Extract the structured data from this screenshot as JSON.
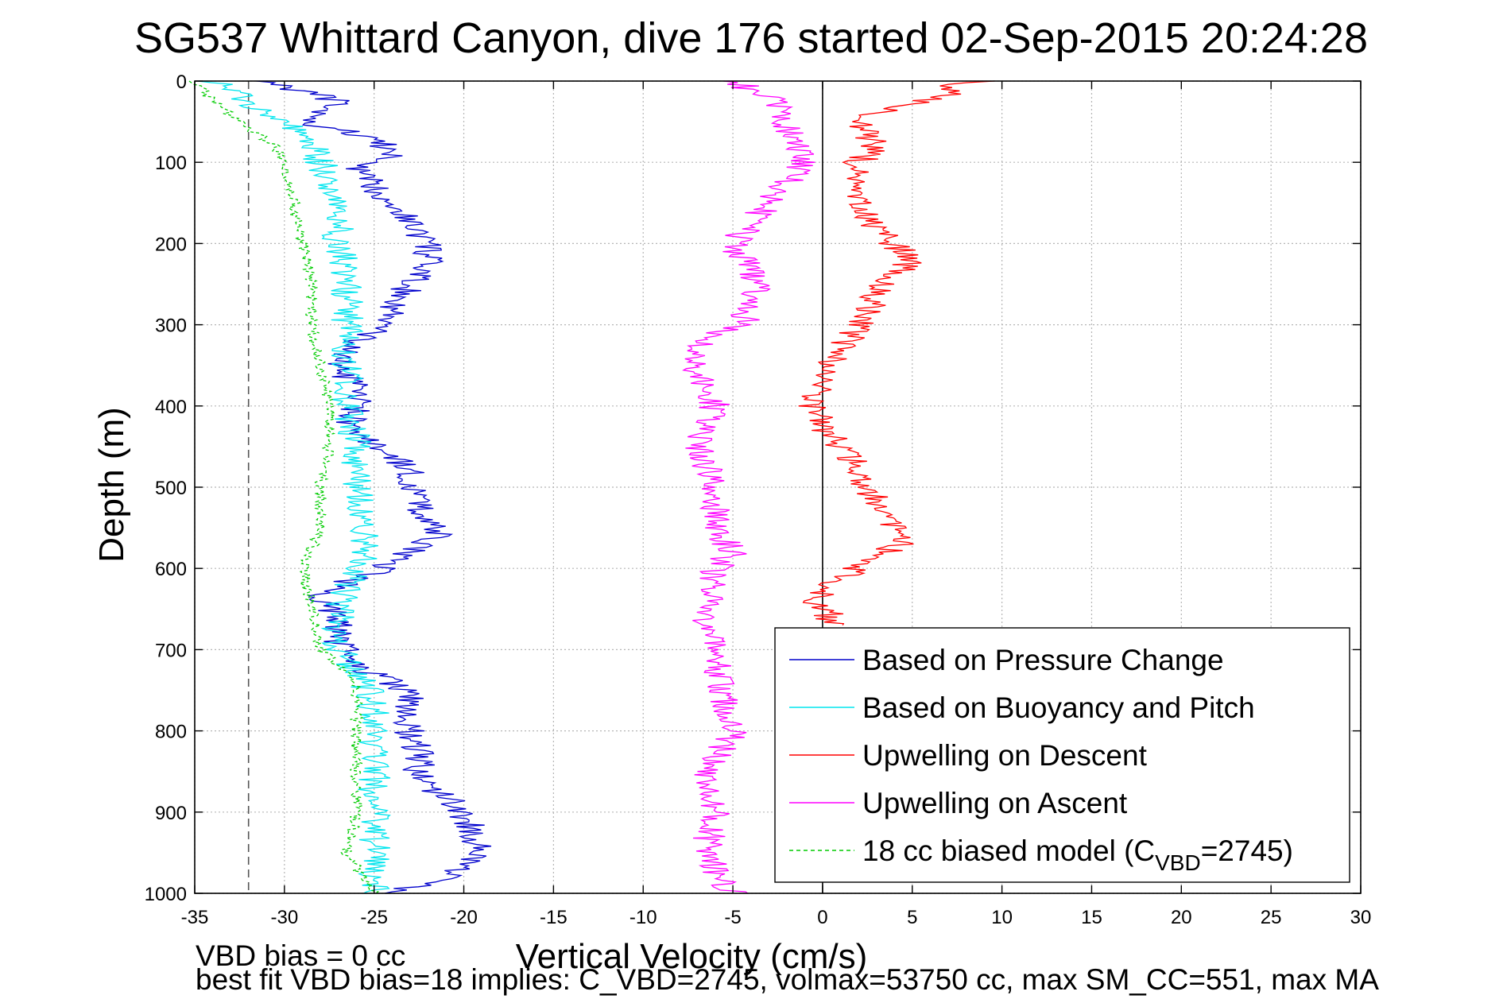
{
  "chart_data": {
    "type": "line",
    "title": "SG537 Whittard Canyon, dive 176 started 02-Sep-2015 20:24:28",
    "xlabel": "Vertical Velocity (cm/s)",
    "ylabel": "Depth (m)",
    "xlim": [
      -35,
      30
    ],
    "ylim": [
      0,
      1000
    ],
    "y_reversed": true,
    "grid": true,
    "legend_position": "bottom-right",
    "x_ticks": [
      "-35",
      "-30",
      "-25",
      "-20",
      "-15",
      "-10",
      "-5",
      "0",
      "5",
      "10",
      "15",
      "20",
      "25",
      "30"
    ],
    "y_ticks": [
      "0",
      "100",
      "200",
      "300",
      "400",
      "500",
      "600",
      "700",
      "800",
      "900",
      "1000"
    ],
    "reference_lines": [
      {
        "axis": "x",
        "value": -32,
        "style": "dashed"
      },
      {
        "axis": "x",
        "value": 0,
        "style": "solid"
      }
    ],
    "series": [
      {
        "name": "Based on Pressure Change",
        "color": "#0000cc",
        "depth": [
          0,
          25,
          50,
          70,
          90,
          110,
          130,
          160,
          200,
          220,
          250,
          300,
          320,
          350,
          380,
          400,
          430,
          460,
          480,
          500,
          540,
          560,
          580,
          600,
          630,
          660,
          690,
          720,
          740,
          760,
          800,
          830,
          860,
          890,
          920,
          950,
          980,
          1000
        ],
        "velocity": [
          -31,
          -27,
          -29,
          -25,
          -24,
          -26,
          -25,
          -23.5,
          -22,
          -22,
          -23,
          -24.5,
          -26,
          -27,
          -26,
          -26,
          -26.5,
          -24,
          -23,
          -23,
          -22,
          -21.5,
          -23,
          -24.5,
          -28,
          -27,
          -27,
          -26,
          -24,
          -23,
          -23,
          -22.5,
          -22.5,
          -20.5,
          -19.5,
          -19,
          -21,
          -24
        ]
      },
      {
        "name": "Based on Buoyancy and Pitch",
        "color": "#00e5ee",
        "depth": [
          0,
          25,
          50,
          80,
          100,
          150,
          200,
          250,
          300,
          350,
          400,
          450,
          500,
          550,
          580,
          620,
          660,
          700,
          740,
          780,
          820,
          860,
          900,
          950,
          1000
        ],
        "velocity": [
          -34,
          -32,
          -30,
          -28.5,
          -28,
          -27,
          -27,
          -26.5,
          -26.5,
          -26.5,
          -26.5,
          -26,
          -26,
          -25.5,
          -25.5,
          -26.5,
          -27,
          -27,
          -25.5,
          -25,
          -25,
          -25,
          -25,
          -25,
          -25
        ]
      },
      {
        "name": "Upwelling on Descent",
        "color": "#ff0000",
        "depth": [
          0,
          5,
          15,
          30,
          50,
          80,
          100,
          130,
          160,
          200,
          220,
          250,
          280,
          300,
          330,
          360,
          400,
          430,
          460,
          500,
          540,
          560,
          580,
          600,
          620,
          640,
          660,
          670
        ],
        "velocity": [
          10,
          6,
          8,
          4,
          2,
          3,
          2,
          1.5,
          2,
          4,
          5,
          3.5,
          2.5,
          2,
          1,
          0,
          -0.5,
          0,
          1.5,
          2.5,
          3.5,
          5,
          3.5,
          2,
          0.5,
          -0.5,
          0.5,
          0.5
        ]
      },
      {
        "name": "Upwelling on Ascent",
        "color": "#ff00ff",
        "depth": [
          0,
          20,
          50,
          100,
          150,
          200,
          250,
          300,
          320,
          350,
          400,
          450,
          500,
          550,
          580,
          600,
          620,
          650,
          700,
          750,
          800,
          850,
          900,
          950,
          1000
        ],
        "velocity": [
          -5,
          -3,
          -2,
          -1,
          -3,
          -5,
          -3.5,
          -4.5,
          -7,
          -7,
          -6,
          -7,
          -6,
          -6,
          -5,
          -6,
          -6,
          -6.5,
          -6,
          -5.5,
          -5,
          -6.5,
          -6,
          -6.5,
          -5
        ]
      },
      {
        "name": "18 cc biased model (C_VBD=2745)",
        "color": "#00cc00",
        "style": "dashed",
        "depth": [
          0,
          25,
          50,
          80,
          100,
          150,
          200,
          250,
          300,
          350,
          400,
          450,
          500,
          550,
          600,
          650,
          700,
          740,
          780,
          820,
          860,
          900,
          950,
          1000
        ],
        "velocity": [
          -35,
          -34,
          -32.5,
          -30.5,
          -30,
          -29.5,
          -29,
          -28.5,
          -28.5,
          -28,
          -27.5,
          -27.5,
          -28,
          -28,
          -29,
          -28.5,
          -28,
          -26,
          -26,
          -26,
          -26,
          -26,
          -26.5,
          -25
        ]
      }
    ],
    "legend_entries": [
      {
        "label": "Based on Pressure Change",
        "color": "#0000cc",
        "style": "solid"
      },
      {
        "label": "Based on Buoyancy and Pitch",
        "color": "#00e5ee",
        "style": "solid"
      },
      {
        "label": "Upwelling on Descent",
        "color": "#ff0000",
        "style": "solid"
      },
      {
        "label": "Upwelling on Ascent",
        "color": "#ff00ff",
        "style": "solid"
      },
      {
        "label_main": "18 cc biased model (C",
        "label_sub": "VBD",
        "label_end": "=2745)",
        "color": "#00cc00",
        "style": "dashed"
      }
    ]
  },
  "notes": {
    "bias": "VBD bias = 0 cc",
    "best_fit": "best fit VBD bias=18 implies: C_VBD=2745, volmax=53750 cc, max SM_CC=551, max MA"
  }
}
